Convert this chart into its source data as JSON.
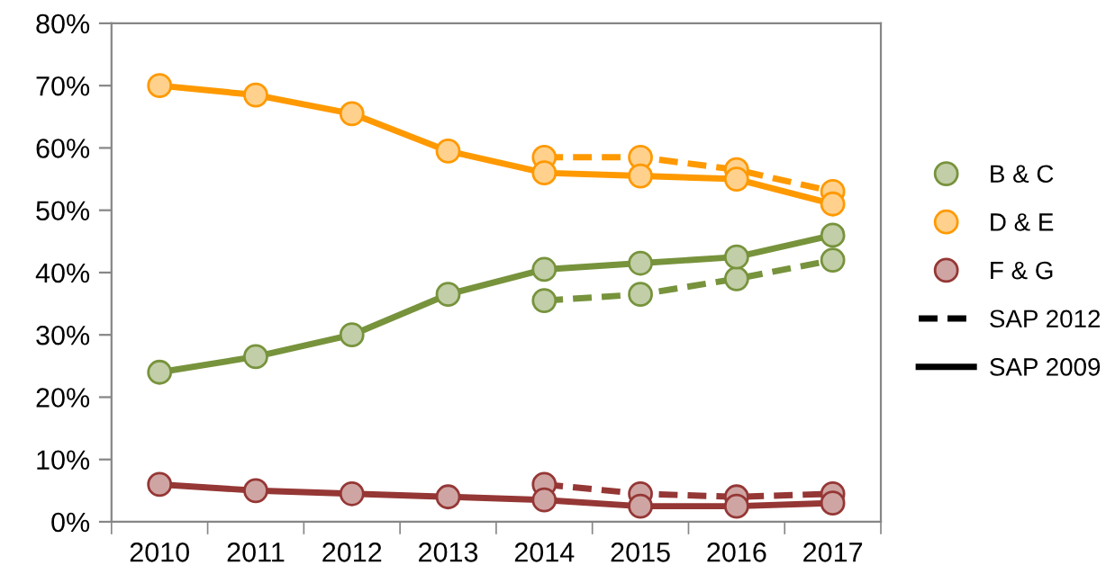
{
  "chart_data": {
    "type": "line",
    "categories": [
      "2010",
      "2011",
      "2012",
      "2013",
      "2014",
      "2015",
      "2016",
      "2017"
    ],
    "ylim": [
      0,
      80
    ],
    "yticks": [
      {
        "value": 0,
        "label": "0%"
      },
      {
        "value": 10,
        "label": "10%"
      },
      {
        "value": 20,
        "label": "20%"
      },
      {
        "value": 30,
        "label": "30%"
      },
      {
        "value": 40,
        "label": "40%"
      },
      {
        "value": 50,
        "label": "50%"
      },
      {
        "value": 60,
        "label": "60%"
      },
      {
        "value": 70,
        "label": "70%"
      },
      {
        "value": 80,
        "label": "80%"
      }
    ],
    "marker": "circle",
    "grid": false,
    "legend": "right",
    "annotations": [
      "SAP 2012",
      "SAP 2009"
    ],
    "series": [
      {
        "color": "#77933c",
        "line_style": "dashed",
        "values": [
          null,
          null,
          null,
          null,
          35.5,
          36.5,
          39,
          42
        ]
      },
      {
        "color": "#ff9900",
        "line_style": "dashed",
        "values": [
          null,
          null,
          null,
          null,
          58.5,
          58.5,
          56.5,
          53
        ]
      },
      {
        "color": "#953735",
        "line_style": "dashed",
        "values": [
          null,
          null,
          null,
          null,
          6,
          4.5,
          4,
          4.5
        ]
      },
      {
        "name": "B & C",
        "color": "#77933c",
        "line_style": "solid",
        "values": [
          24,
          26.5,
          30,
          36.5,
          40.5,
          41.5,
          42.5,
          46
        ]
      },
      {
        "name": "D & E",
        "color": "#ff9900",
        "line_style": "solid",
        "values": [
          70,
          68.5,
          65.5,
          59.5,
          56,
          55.5,
          55,
          51
        ]
      },
      {
        "name": "F & G",
        "color": "#953735",
        "line_style": "solid",
        "values": [
          6,
          5,
          4.5,
          4,
          3.5,
          2.5,
          2.5,
          3
        ]
      }
    ]
  }
}
